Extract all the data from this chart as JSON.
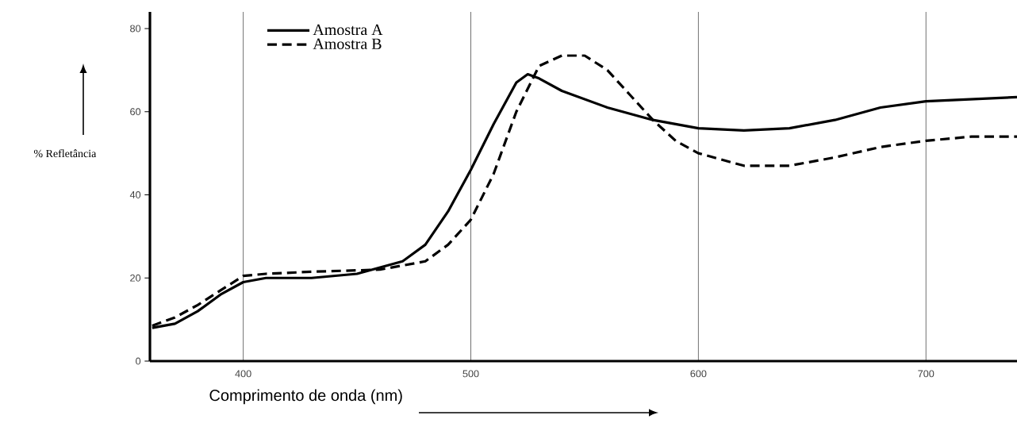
{
  "chart_data": {
    "type": "line",
    "xlabel": "Comprimento de onda (nm)",
    "ylabel": "% Refletância",
    "xlim": [
      359,
      740
    ],
    "ylim": [
      0,
      84
    ],
    "xticks": [
      400,
      500,
      600,
      700
    ],
    "yticks": [
      0,
      20,
      40,
      60,
      80
    ],
    "grid": "x",
    "legend": "top left",
    "marker": "none",
    "series": [
      {
        "name": "Amostra A",
        "color": "#000000",
        "line_style": "solid",
        "x": [
          360,
          370,
          380,
          390,
          400,
          410,
          430,
          450,
          470,
          480,
          490,
          500,
          510,
          520,
          525,
          530,
          540,
          560,
          580,
          600,
          620,
          640,
          660,
          680,
          700,
          720,
          740
        ],
        "values": [
          8,
          9,
          12,
          16,
          19,
          20,
          20,
          21,
          24,
          28,
          36,
          46,
          57,
          67,
          69,
          68,
          65,
          61,
          58,
          56,
          55.5,
          56,
          58,
          61,
          62.5,
          63,
          63.5
        ]
      },
      {
        "name": "Amostra B",
        "color": "#000000",
        "line_style": "dashed",
        "x": [
          360,
          370,
          380,
          390,
          400,
          410,
          430,
          460,
          480,
          490,
          500,
          510,
          520,
          530,
          540,
          550,
          560,
          570,
          580,
          590,
          600,
          620,
          640,
          660,
          680,
          700,
          720,
          740
        ],
        "values": [
          8.5,
          10.5,
          13.5,
          17,
          20.5,
          21,
          21.5,
          22,
          24,
          28,
          34,
          45,
          60,
          71,
          73.5,
          73.5,
          70,
          64,
          58,
          53,
          50,
          47,
          47,
          49,
          51.5,
          53,
          54,
          54
        ]
      }
    ]
  }
}
